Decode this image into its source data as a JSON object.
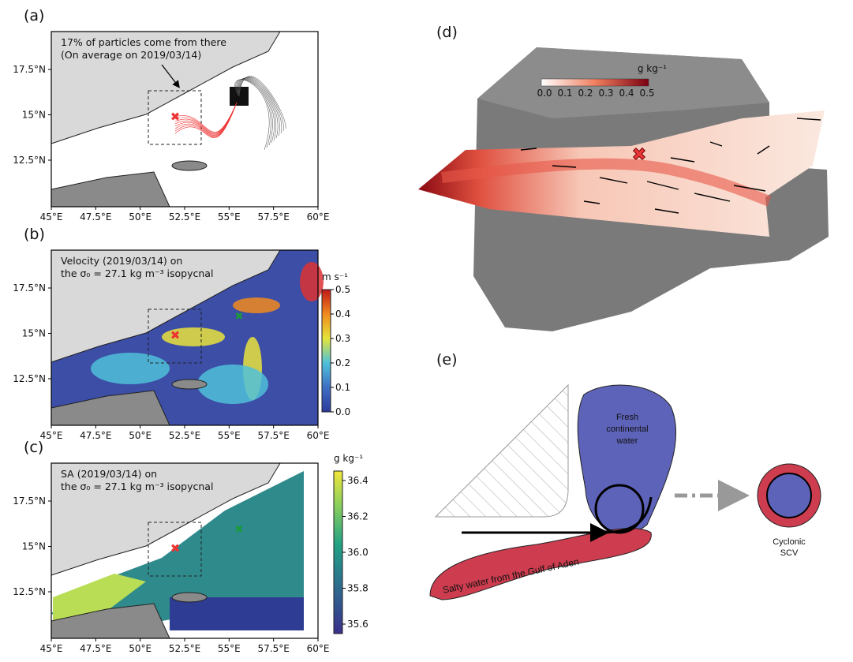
{
  "panels": {
    "a": {
      "label": "(a)",
      "annotation": [
        "17% of particles come from there",
        "(On average on 2019/03/14)"
      ]
    },
    "b": {
      "label": "(b)",
      "annotation": [
        "Velocity (2019/03/14) on",
        "the σ₀ = 27.1 kg m⁻³ isopycnal"
      ],
      "colorbar": {
        "unit": "m s⁻¹",
        "ticks": [
          "0.0",
          "0.1",
          "0.2",
          "0.3",
          "0.4",
          "0.5"
        ]
      }
    },
    "c": {
      "label": "(c)",
      "annotation": [
        "SA (2019/03/14) on",
        "the σ₀ = 27.1 kg m⁻³ isopycnal"
      ],
      "colorbar": {
        "unit": "g kg⁻¹",
        "ticks": [
          "35.6",
          "35.8",
          "36.0",
          "36.2",
          "36.4"
        ]
      }
    },
    "d": {
      "label": "(d)",
      "colorbar": {
        "unit": "g kg⁻¹",
        "ticks": [
          "0.0",
          "0.1",
          "0.2",
          "0.3",
          "0.4",
          "0.5"
        ]
      }
    },
    "e": {
      "label": "(e)",
      "fresh": [
        "Fresh",
        "continental",
        "water"
      ],
      "salty": "Salty water from the Gulf of Aden",
      "scv": [
        "Cyclonic",
        "SCV"
      ]
    }
  },
  "map_axes": {
    "xticks": [
      "45°E",
      "47.5°E",
      "50°E",
      "52.5°E",
      "55°E",
      "57.5°E",
      "60°E"
    ],
    "yticks": [
      "17.5°N",
      "15°N",
      "12.5°N"
    ]
  }
}
